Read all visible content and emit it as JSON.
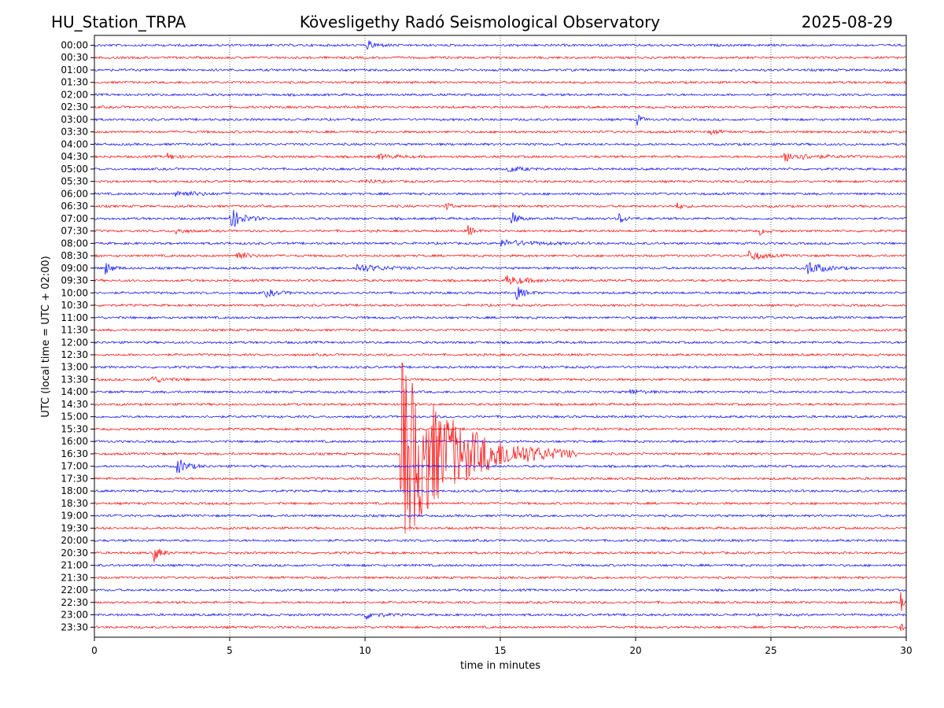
{
  "header": {
    "station": "HU_Station_TRPA",
    "observatory": "Kövesligethy Radó Seismological Observatory",
    "date": "2025-08-29"
  },
  "chart_data": {
    "type": "line",
    "title": "Kövesligethy Radó Seismological Observatory",
    "xlabel": "time in minutes",
    "ylabel": "UTC (local time = UTC + 02:00)",
    "xlim": [
      0,
      30
    ],
    "x_ticks": [
      0,
      5,
      10,
      15,
      20,
      25,
      30
    ],
    "grid_x": true,
    "grid_y": false,
    "row_labels": [
      "00:00",
      "00:30",
      "01:00",
      "01:30",
      "02:00",
      "02:30",
      "03:00",
      "03:30",
      "04:00",
      "04:30",
      "05:00",
      "05:30",
      "06:00",
      "06:30",
      "07:00",
      "07:30",
      "08:00",
      "08:30",
      "09:00",
      "09:30",
      "10:00",
      "10:30",
      "11:00",
      "11:30",
      "12:00",
      "12:30",
      "13:00",
      "13:30",
      "14:00",
      "14:30",
      "15:00",
      "15:30",
      "16:00",
      "16:30",
      "17:00",
      "17:30",
      "18:00",
      "18:30",
      "19:00",
      "19:30",
      "20:00",
      "20:30",
      "21:00",
      "21:30",
      "22:00",
      "22:30",
      "23:00",
      "23:30"
    ],
    "colors": [
      "#0000ff",
      "#ff0000"
    ],
    "events": [
      {
        "row": "00:00",
        "minute": 10.1,
        "amp": 5,
        "dur_min": 1.2
      },
      {
        "row": "03:00",
        "minute": 20.05,
        "amp": 7,
        "dur_min": 0.6
      },
      {
        "row": "03:30",
        "minute": 22.8,
        "amp": 3,
        "dur_min": 1.0
      },
      {
        "row": "04:30",
        "minute": 2.7,
        "amp": 4,
        "dur_min": 1.0
      },
      {
        "row": "04:30",
        "minute": 10.5,
        "amp": 3,
        "dur_min": 2.0
      },
      {
        "row": "04:30",
        "minute": 25.5,
        "amp": 6,
        "dur_min": 3.0
      },
      {
        "row": "05:00",
        "minute": 15.3,
        "amp": 4,
        "dur_min": 1.5
      },
      {
        "row": "05:30",
        "minute": 10.0,
        "amp": 3,
        "dur_min": 1.0
      },
      {
        "row": "06:00",
        "minute": 3.0,
        "amp": 4,
        "dur_min": 2.5
      },
      {
        "row": "06:30",
        "minute": 13.0,
        "amp": 6,
        "dur_min": 0.5
      },
      {
        "row": "06:30",
        "minute": 21.5,
        "amp": 4,
        "dur_min": 0.8
      },
      {
        "row": "07:00",
        "minute": 5.0,
        "amp": 14,
        "dur_min": 1.5
      },
      {
        "row": "07:00",
        "minute": 15.4,
        "amp": 9,
        "dur_min": 0.8
      },
      {
        "row": "07:00",
        "minute": 19.4,
        "amp": 6,
        "dur_min": 0.8
      },
      {
        "row": "07:30",
        "minute": 3.0,
        "amp": 4,
        "dur_min": 1.0
      },
      {
        "row": "07:30",
        "minute": 13.8,
        "amp": 8,
        "dur_min": 0.6
      },
      {
        "row": "07:30",
        "minute": 24.6,
        "amp": 4,
        "dur_min": 0.8
      },
      {
        "row": "08:00",
        "minute": 15.0,
        "amp": 4,
        "dur_min": 4.0
      },
      {
        "row": "08:30",
        "minute": 5.2,
        "amp": 8,
        "dur_min": 1.2
      },
      {
        "row": "08:30",
        "minute": 24.2,
        "amp": 7,
        "dur_min": 1.5
      },
      {
        "row": "09:00",
        "minute": 0.4,
        "amp": 8,
        "dur_min": 0.8
      },
      {
        "row": "09:00",
        "minute": 9.7,
        "amp": 5,
        "dur_min": 3.0
      },
      {
        "row": "09:00",
        "minute": 26.3,
        "amp": 10,
        "dur_min": 1.8
      },
      {
        "row": "09:30",
        "minute": 15.2,
        "amp": 6,
        "dur_min": 2.5
      },
      {
        "row": "10:00",
        "minute": 6.3,
        "amp": 5,
        "dur_min": 1.5
      },
      {
        "row": "10:00",
        "minute": 15.6,
        "amp": 8,
        "dur_min": 1.0
      },
      {
        "row": "13:30",
        "minute": 2.0,
        "amp": 5,
        "dur_min": 1.8
      },
      {
        "row": "14:00",
        "minute": 19.8,
        "amp": 3,
        "dur_min": 1.5
      },
      {
        "row": "16:30",
        "minute": 11.3,
        "amp": 125,
        "dur_min": 6.5
      },
      {
        "row": "17:00",
        "minute": 3.05,
        "amp": 11,
        "dur_min": 1.2
      },
      {
        "row": "20:30",
        "minute": 2.2,
        "amp": 11,
        "dur_min": 0.8
      },
      {
        "row": "22:30",
        "minute": 29.8,
        "amp": 18,
        "dur_min": 0.2
      },
      {
        "row": "23:00",
        "minute": 10.0,
        "amp": 5,
        "dur_min": 1.5
      },
      {
        "row": "23:30",
        "minute": 29.8,
        "amp": 13,
        "dur_min": 0.2
      }
    ]
  }
}
